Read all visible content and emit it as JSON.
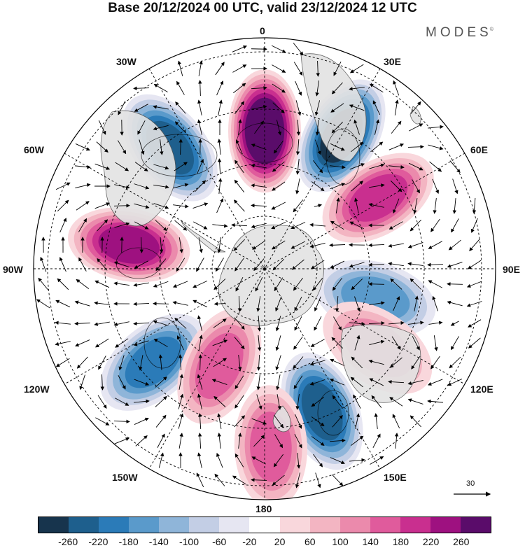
{
  "title": "Base 20/12/2024 00 UTC, valid 23/12/2024 12 UTC",
  "brand": {
    "name": "MODES",
    "mark": "©"
  },
  "longitude_labels": {
    "lon_0": "0",
    "lon_30e": "30E",
    "lon_60e": "60E",
    "lon_90e": "90E",
    "lon_120e": "120E",
    "lon_150e": "150E",
    "lon_180": "180",
    "lon_150w": "150W",
    "lon_120w": "120W",
    "lon_90w": "90W",
    "lon_60w": "60W",
    "lon_30w": "30W"
  },
  "reference_vector": {
    "label": "30"
  },
  "colorbar": {
    "colors": [
      "#17344d",
      "#1e5f8d",
      "#2b7bb8",
      "#5a9acb",
      "#8fb5d9",
      "#c3cee5",
      "#e6e6f2",
      "#ffffff",
      "#f9d7dc",
      "#f3b5c2",
      "#eb8aac",
      "#e05b9c",
      "#c92f8f",
      "#9e1180",
      "#5a0c6a"
    ],
    "tick_labels": [
      "-260",
      "-220",
      "-180",
      "-140",
      "-100",
      "-60",
      "-20",
      "20",
      "60",
      "100",
      "140",
      "180",
      "220",
      "260"
    ]
  },
  "anomaly_centers": [
    {
      "lon": 0,
      "lat": -52,
      "value": 300
    },
    {
      "lon": -38,
      "lat": -48,
      "value": -220
    },
    {
      "lon": 30,
      "lat": -48,
      "value": -260
    },
    {
      "lon": 58,
      "lat": -53,
      "value": 200
    },
    {
      "lon": -80,
      "lat": -52,
      "value": 220
    },
    {
      "lon": 105,
      "lat": -58,
      "value": -150
    },
    {
      "lon": -130,
      "lat": -50,
      "value": -200
    },
    {
      "lon": -155,
      "lat": -60,
      "value": 140
    },
    {
      "lon": 125,
      "lat": -52,
      "value": 130
    },
    {
      "lon": 158,
      "lat": -48,
      "value": -240
    },
    {
      "lon": 178,
      "lat": -42,
      "value": 170
    }
  ]
}
